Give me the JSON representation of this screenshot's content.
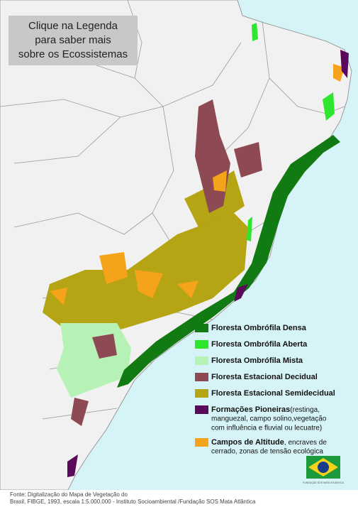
{
  "callout": {
    "lines": [
      "Clique na Legenda",
      "para saber mais",
      "sobre os Ecossistemas"
    ]
  },
  "legend": {
    "items": [
      {
        "label": "Floresta Ombrófila Densa",
        "color": "#127a12"
      },
      {
        "label": "Floresta Ombrófila Aberta",
        "color": "#2ee62e"
      },
      {
        "label": "Floresta Ombrófila Mista",
        "color": "#b6f2b6"
      },
      {
        "label": "Floresta Estacional Decidual",
        "color": "#8e4a52"
      },
      {
        "label": "Floresta Estacional Semidecidual",
        "color": "#b5a414"
      },
      {
        "label": "Formações Pioneiras",
        "color": "#5a0a5a",
        "note": [
          "(restinga,",
          "manguezal, campo solino,vegetação",
          "com influência e fluvial ou lecuatre)"
        ]
      },
      {
        "label": "Campos de Altitude",
        "color": "#f5a31a",
        "note": [
          ", encraves de",
          "cerrado, zonas de tensão ecológica"
        ]
      }
    ]
  },
  "flag_caption": "FUNDAÇÃO SOS MATA ATLÂNTICA",
  "source": {
    "lines": [
      "Fonte: Digitalização do  Mapa  de  Vegetação do",
      "Brasil, FIBGE,  1993,  escala  1:5.000.000 - Instituto Socioambiental /Fundação SOS Mata Atlântica"
    ]
  }
}
